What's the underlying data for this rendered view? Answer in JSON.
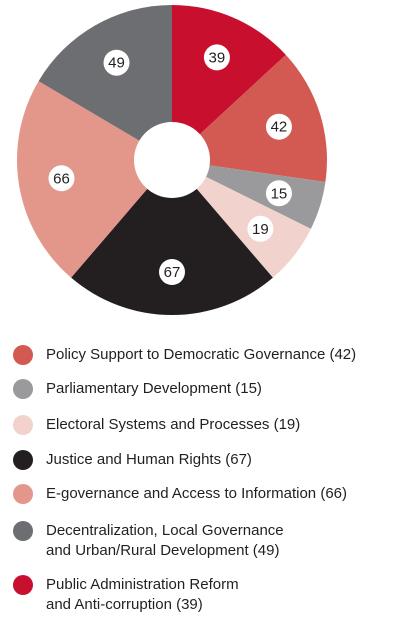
{
  "colors": {
    "policy_support": "#d25a52",
    "parliamentary": "#9a9a9c",
    "electoral": "#f2d2cc",
    "justice": "#231f20",
    "egovernance": "#e3968a",
    "decentralization": "#6d6e71",
    "public_admin": "#c8102e"
  },
  "chart_data": {
    "type": "pie",
    "variant": "donut",
    "labels": [
      "Public Administration Reform and Anti-corruption",
      "Policy Support to Democratic Governance",
      "Parliamentary Development",
      "Electoral Systems and Processes",
      "Justice and Human Rights",
      "E-governance and Access to Information",
      "Decentralization, Local Governance and Urban/Rural Development"
    ],
    "values": [
      39,
      42,
      15,
      19,
      67,
      66,
      49
    ],
    "slice_labels": [
      "39",
      "42",
      "15",
      "19",
      "67",
      "66",
      "49"
    ],
    "colors": [
      "#c8102e",
      "#d25a52",
      "#9a9a9c",
      "#f2d2cc",
      "#231f20",
      "#e3968a",
      "#6d6e71"
    ],
    "start": "top",
    "direction": "clockwise"
  },
  "legend": [
    {
      "lines": [
        "Policy Support to Democratic Governance (42)"
      ],
      "color": "#d25a52"
    },
    {
      "lines": [
        "Parliamentary Development (15)"
      ],
      "color": "#9a9a9c"
    },
    {
      "lines": [
        "Electoral Systems and Processes (19)"
      ],
      "color": "#f2d2cc"
    },
    {
      "lines": [
        "Justice and Human Rights (67)"
      ],
      "color": "#231f20"
    },
    {
      "lines": [
        "E-governance and Access to Information (66)"
      ],
      "color": "#e3968a"
    },
    {
      "lines": [
        "Decentralization, Local Governance",
        "and Urban/Rural Development (49)"
      ],
      "color": "#6d6e71"
    },
    {
      "lines": [
        "Public Administration Reform",
        "and Anti-corruption (39)"
      ],
      "color": "#c8102e"
    }
  ]
}
